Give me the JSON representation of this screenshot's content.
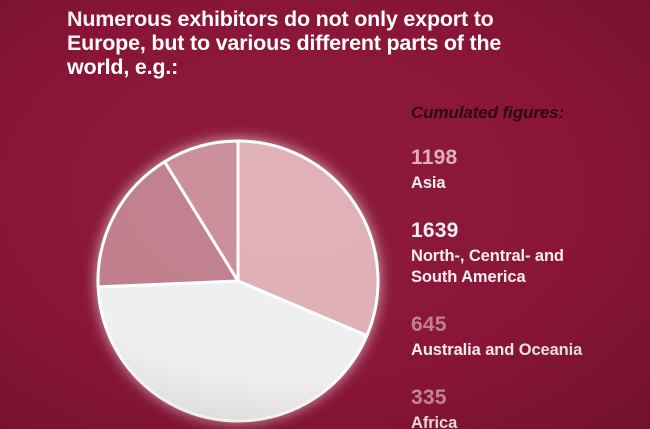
{
  "slide": {
    "background_color": "#8a1538",
    "title_color": "#ffffff",
    "title_lines": [
      "Numerous exhibitors do not only export to",
      "Europe, but to various different parts of the",
      "world, e.g.:"
    ],
    "title_full": "Numerous exhibitors do not only export to Europe, but to various different parts of the world, e.g.:"
  },
  "chart_data": {
    "type": "pie",
    "title": "Cumulated figures:",
    "legend_position": "right",
    "start_angle_deg": 0,
    "direction": "clockwise",
    "slice_border_color": "#ffffff",
    "legend_title_color": "#2c0712",
    "label_color": "#f7eef1",
    "series": [
      {
        "id": "asia",
        "name": "Asia",
        "value": 1198,
        "color": "#dfafb5"
      },
      {
        "id": "americas",
        "name": "North-, Central- and South America",
        "value": 1639,
        "color": "#efeef0"
      },
      {
        "id": "australia-oceania",
        "name": "Australia and Oceania",
        "value": 645,
        "color": "#c17f8e"
      },
      {
        "id": "africa",
        "name": "Africa",
        "value": 335,
        "color": "#cb8e9b"
      }
    ]
  }
}
